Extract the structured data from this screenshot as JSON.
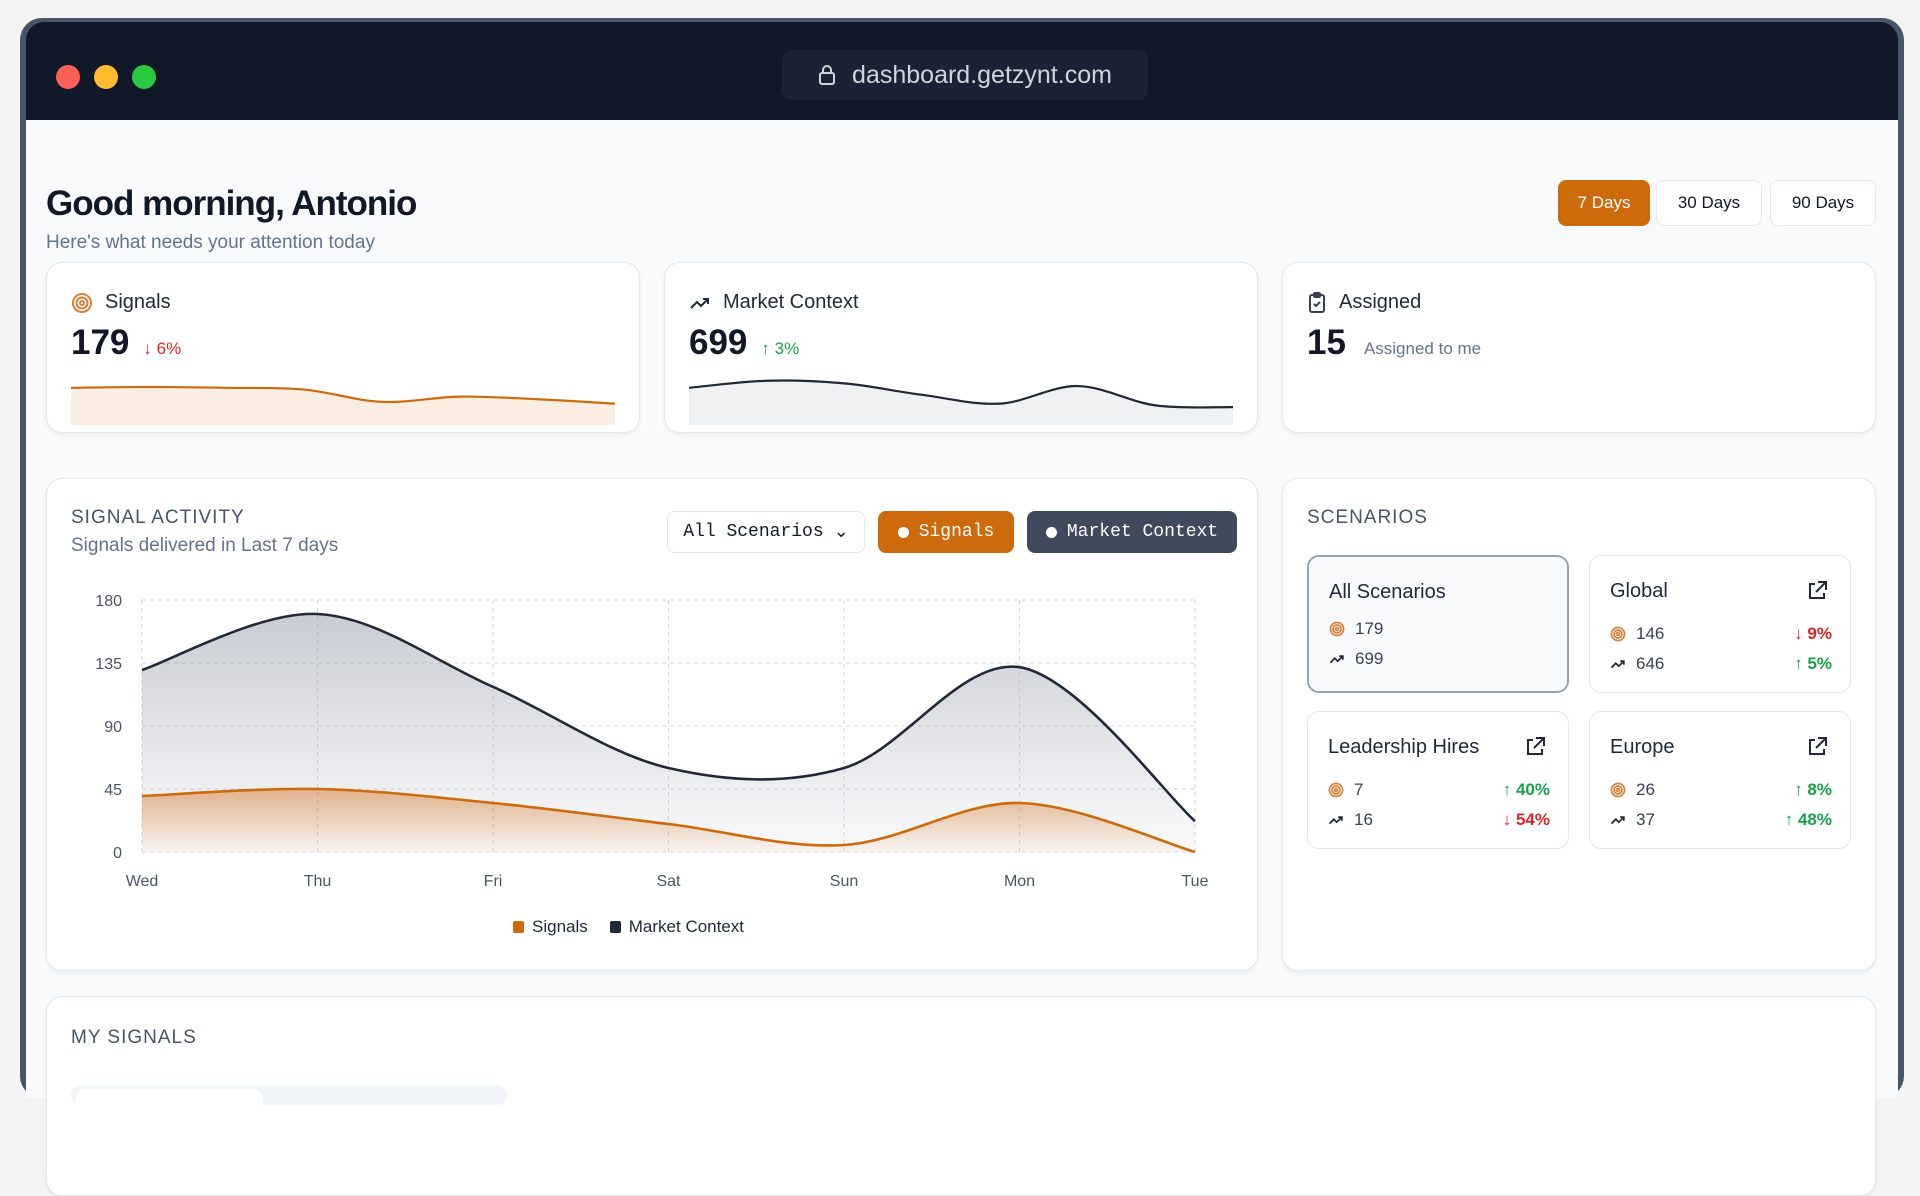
{
  "browser": {
    "url": "dashboard.getzynt.com"
  },
  "header": {
    "greeting": "Good morning, Antonio",
    "subtitle": "Here's what needs your attention today",
    "ranges": [
      "7 Days",
      "30 Days",
      "90 Days"
    ],
    "active_range": "7 Days"
  },
  "colors": {
    "accent": "#cc6a0c",
    "dark": "#1f2937",
    "up": "#16a34a",
    "down": "#dc2626"
  },
  "stats": [
    {
      "title": "Signals",
      "icon": "target-icon",
      "value": "179",
      "change": "↓ 6%",
      "trend": "down",
      "spark": [
        40,
        41,
        40,
        38,
        24,
        30,
        27,
        22
      ]
    },
    {
      "title": "Market Context",
      "icon": "trending-up-icon",
      "value": "699",
      "change": "↑ 3%",
      "trend": "up",
      "spark": [
        40,
        48,
        45,
        32,
        22,
        42,
        20,
        18
      ]
    },
    {
      "title": "Assigned",
      "icon": "clipboard-icon",
      "value": "15",
      "note": "Assigned to me"
    }
  ],
  "activity": {
    "title": "SIGNAL ACTIVITY",
    "subtitle": "Signals delivered in Last 7 days",
    "filter": "All Scenarios",
    "toggle_signals": "Signals",
    "toggle_market": "Market Context"
  },
  "chart_data": {
    "type": "area",
    "categories": [
      "Wed",
      "Thu",
      "Fri",
      "Sat",
      "Sun",
      "Mon",
      "Tue"
    ],
    "ylim": [
      0,
      180
    ],
    "yticks": [
      0,
      45,
      90,
      135,
      180
    ],
    "series": [
      {
        "name": "Signals",
        "color": "#cc6a0c",
        "values": [
          40,
          45,
          35,
          20,
          5,
          35,
          0
        ]
      },
      {
        "name": "Market Context",
        "color": "#1f2937",
        "values": [
          130,
          170,
          118,
          60,
          60,
          132,
          22
        ]
      }
    ],
    "legend": "bottom",
    "grid": true
  },
  "scenarios": {
    "title": "SCENARIOS",
    "items": [
      {
        "name": "All Scenarios",
        "signals": "179",
        "market": "699",
        "selected": true
      },
      {
        "name": "Global",
        "signals": "146",
        "signals_change": "↓ 9%",
        "signals_trend": "dn",
        "market": "646",
        "market_change": "↑ 5%",
        "market_trend": "up"
      },
      {
        "name": "Leadership Hires",
        "signals": "7",
        "signals_change": "↑ 40%",
        "signals_trend": "up",
        "market": "16",
        "market_change": "↓ 54%",
        "market_trend": "dn"
      },
      {
        "name": "Europe",
        "signals": "26",
        "signals_change": "↑ 8%",
        "signals_trend": "up",
        "market": "37",
        "market_change": "↑ 48%",
        "market_trend": "up"
      }
    ]
  },
  "my_signals": {
    "title": "MY SIGNALS"
  }
}
